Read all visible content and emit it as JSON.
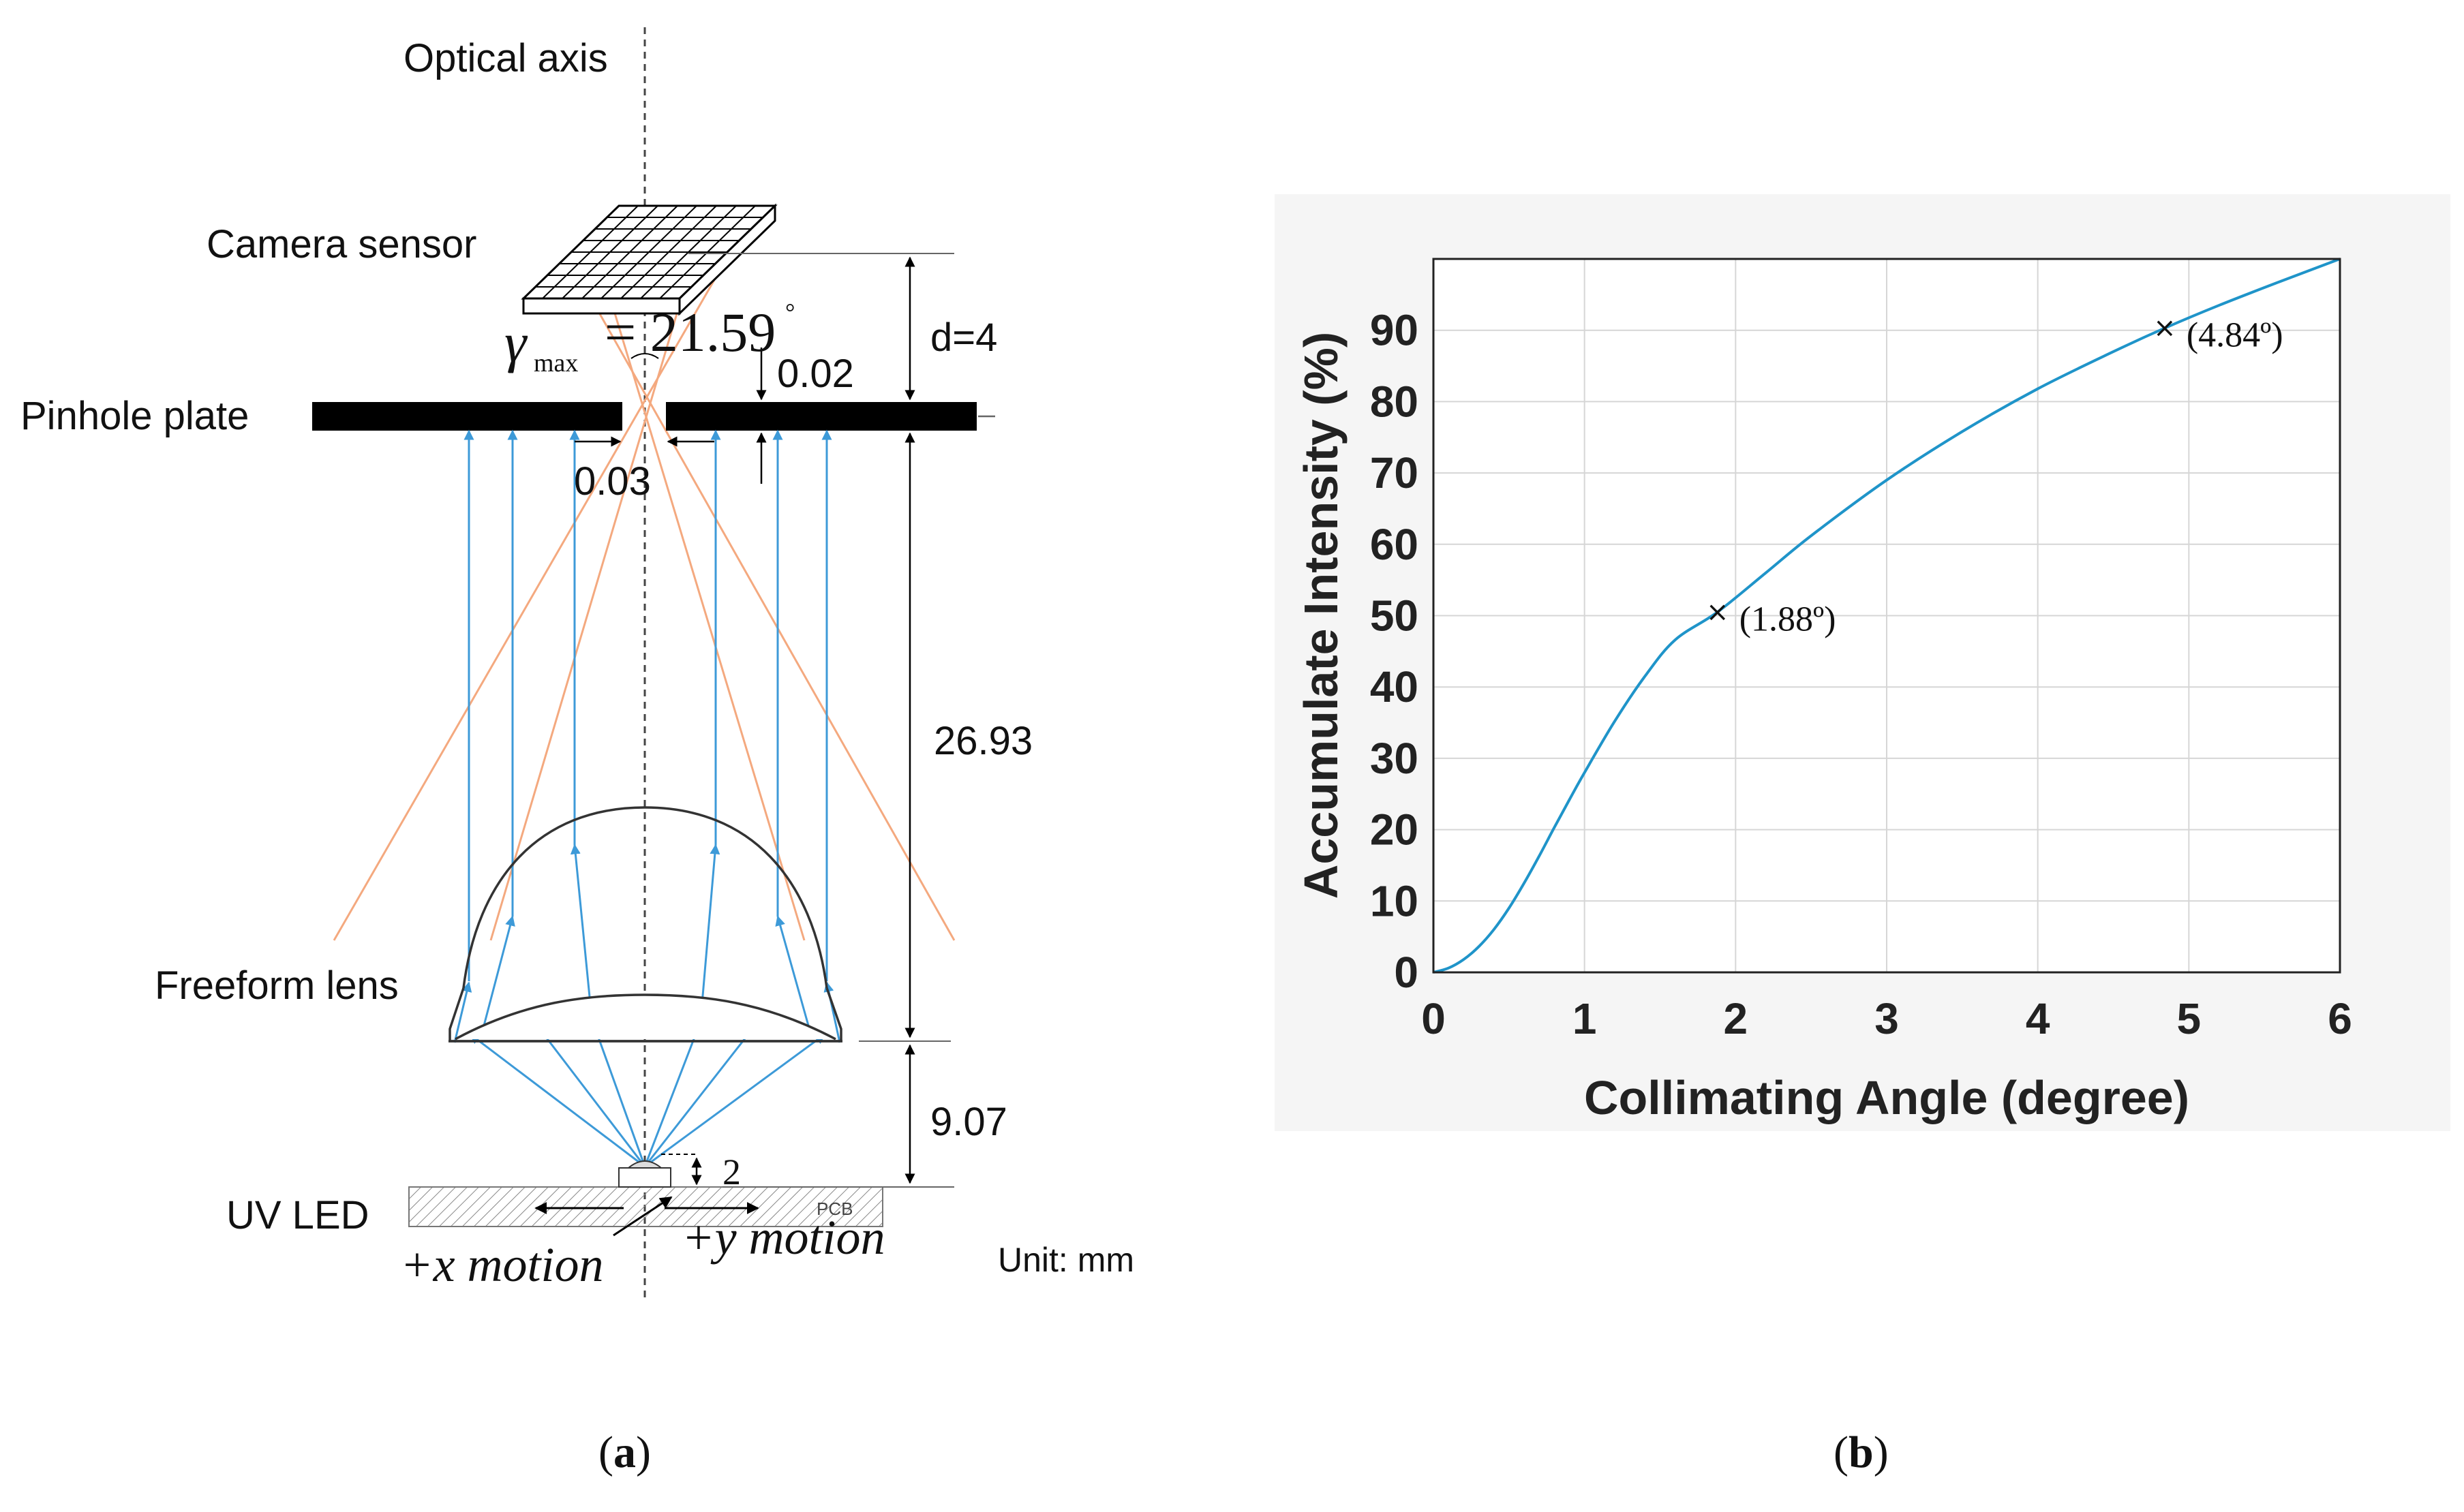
{
  "panel_a": {
    "caption_open": "(",
    "caption_letter": "a",
    "caption_close": ")",
    "labels": {
      "optical_axis": "Optical axis",
      "camera_sensor": "Camera sensor",
      "pinhole_plate": "Pinhole plate",
      "freeform_lens": "Freeform lens",
      "uv_led": "UV LED",
      "unit": "Unit: mm",
      "pcb": "PCB",
      "x_motion": "+x  motion",
      "y_motion": "+y  motion",
      "gamma_symbol": "γ",
      "gamma_sub": "max",
      "gamma_value": "= 21.59",
      "degree_mark": "°"
    },
    "dimensions": {
      "d": "d=4",
      "plate_thickness": "0.02",
      "pinhole_width": "0.03",
      "lens_to_plate": "26.93",
      "led_to_lens": "9.07",
      "led_height": "2"
    },
    "colors": {
      "ray_blue": "#3d9ad8",
      "ray_orange": "#f4a97f",
      "lens": "#333333"
    }
  },
  "panel_b": {
    "caption_open": "(",
    "caption_letter": "b",
    "caption_close": ")"
  },
  "chart_data": {
    "type": "line",
    "title": "",
    "xlabel": "Collimating Angle (degree)",
    "ylabel": "Accumulate Intensity (%)",
    "xlim": [
      0,
      6
    ],
    "ylim": [
      0,
      100
    ],
    "xticks": [
      0,
      1,
      2,
      3,
      4,
      5,
      6
    ],
    "yticks": [
      0,
      10,
      20,
      30,
      40,
      50,
      60,
      70,
      80,
      90
    ],
    "grid": true,
    "series": [
      {
        "name": "Accumulate Intensity",
        "color": "#1f94c9",
        "x": [
          0,
          0.1,
          0.2,
          0.3,
          0.4,
          0.5,
          0.6,
          0.7,
          0.8,
          0.9,
          1.0,
          1.2,
          1.4,
          1.6,
          1.88,
          2.2,
          2.5,
          3.0,
          3.5,
          4.0,
          4.5,
          4.84,
          5.2,
          5.6,
          6.0
        ],
        "y": [
          0,
          0.6,
          1.8,
          3.6,
          6.0,
          9.0,
          12.5,
          16.3,
          20.3,
          24.2,
          28.0,
          35.2,
          41.5,
          46.6,
          50.5,
          56.0,
          61.2,
          69.0,
          75.8,
          81.8,
          87.0,
          90.3,
          93.5,
          96.8,
          100.0
        ]
      }
    ],
    "annotations": [
      {
        "x": 1.88,
        "y": 50.5,
        "marker": "×",
        "label": "(1.88º)"
      },
      {
        "x": 4.84,
        "y": 90.3,
        "marker": "×",
        "label": "(4.84º)"
      }
    ]
  }
}
